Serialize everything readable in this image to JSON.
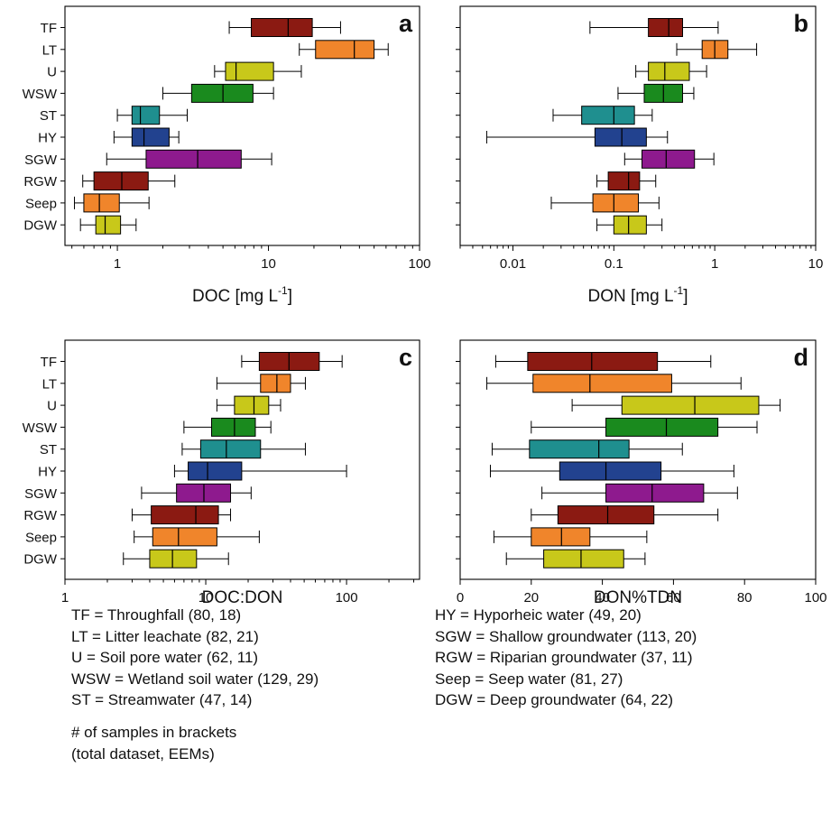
{
  "chart_data": [
    {
      "type": "box",
      "panel_letter": "a",
      "xlabel": "DOC [mg L",
      "xlabel_sup": "-1",
      "xlabel_tail": "]",
      "xscale": "log",
      "xlim": [
        0.45,
        100
      ],
      "xticks": [
        {
          "value": 1,
          "label": "1"
        },
        {
          "value": 10,
          "label": "10"
        },
        {
          "value": 100,
          "label": "100"
        }
      ],
      "categories": [
        "TF",
        "LT",
        "U",
        "WSW",
        "ST",
        "HY",
        "SGW",
        "RGW",
        "Seep",
        "DGW"
      ],
      "colors": [
        "#8b1a12",
        "#f0852b",
        "#c8c81a",
        "#1a8a1e",
        "#1f8f8f",
        "#22428f",
        "#8e1a8e",
        "#8b1a12",
        "#f0852b",
        "#c8c81a"
      ],
      "boxes": [
        {
          "min": 5.5,
          "q1": 7.7,
          "median": 13.5,
          "q3": 19.5,
          "max": 30
        },
        {
          "min": 16,
          "q1": 20.5,
          "median": 37,
          "q3": 50,
          "max": 62
        },
        {
          "min": 4.4,
          "q1": 5.2,
          "median": 6.1,
          "q3": 10.8,
          "max": 16.5
        },
        {
          "min": 2.0,
          "q1": 3.1,
          "median": 5.0,
          "q3": 7.9,
          "max": 10.8
        },
        {
          "min": 1.0,
          "q1": 1.25,
          "median": 1.42,
          "q3": 1.9,
          "max": 2.9
        },
        {
          "min": 0.95,
          "q1": 1.25,
          "median": 1.5,
          "q3": 2.2,
          "max": 2.55
        },
        {
          "min": 0.85,
          "q1": 1.55,
          "median": 3.4,
          "q3": 6.6,
          "max": 10.5
        },
        {
          "min": 0.59,
          "q1": 0.7,
          "median": 1.07,
          "q3": 1.6,
          "max": 2.4
        },
        {
          "min": 0.52,
          "q1": 0.6,
          "median": 0.76,
          "q3": 1.03,
          "max": 1.62
        },
        {
          "min": 0.57,
          "q1": 0.72,
          "median": 0.83,
          "q3": 1.05,
          "max": 1.33
        }
      ]
    },
    {
      "type": "box",
      "panel_letter": "b",
      "xlabel": "DON [mg L",
      "xlabel_sup": "-1",
      "xlabel_tail": "]",
      "xscale": "log",
      "xlim": [
        0.003,
        10
      ],
      "xticks": [
        {
          "value": 0.01,
          "label": "0.01"
        },
        {
          "value": 0.1,
          "label": "0.1"
        },
        {
          "value": 1,
          "label": "1"
        },
        {
          "value": 10,
          "label": "10"
        }
      ],
      "categories": [
        "TF",
        "LT",
        "U",
        "WSW",
        "ST",
        "HY",
        "SGW",
        "RGW",
        "Seep",
        "DGW"
      ],
      "colors": [
        "#8b1a12",
        "#f0852b",
        "#c8c81a",
        "#1a8a1e",
        "#1f8f8f",
        "#22428f",
        "#8e1a8e",
        "#8b1a12",
        "#f0852b",
        "#c8c81a"
      ],
      "boxes": [
        {
          "min": 0.058,
          "q1": 0.22,
          "median": 0.35,
          "q3": 0.48,
          "max": 1.08
        },
        {
          "min": 0.42,
          "q1": 0.75,
          "median": 1.0,
          "q3": 1.35,
          "max": 2.6
        },
        {
          "min": 0.165,
          "q1": 0.22,
          "median": 0.32,
          "q3": 0.56,
          "max": 0.83
        },
        {
          "min": 0.11,
          "q1": 0.2,
          "median": 0.31,
          "q3": 0.48,
          "max": 0.62
        },
        {
          "min": 0.025,
          "q1": 0.048,
          "median": 0.1,
          "q3": 0.16,
          "max": 0.24
        },
        {
          "min": 0.0055,
          "q1": 0.065,
          "median": 0.12,
          "q3": 0.21,
          "max": 0.34
        },
        {
          "min": 0.128,
          "q1": 0.19,
          "median": 0.33,
          "q3": 0.63,
          "max": 0.98
        },
        {
          "min": 0.068,
          "q1": 0.088,
          "median": 0.14,
          "q3": 0.18,
          "max": 0.26
        },
        {
          "min": 0.024,
          "q1": 0.062,
          "median": 0.1,
          "q3": 0.175,
          "max": 0.28
        },
        {
          "min": 0.068,
          "q1": 0.1,
          "median": 0.14,
          "q3": 0.21,
          "max": 0.3
        }
      ]
    },
    {
      "type": "box",
      "panel_letter": "c",
      "xlabel": "DOC:DON",
      "xscale": "log",
      "xlim": [
        1,
        330
      ],
      "xticks": [
        {
          "value": 1,
          "label": "1"
        },
        {
          "value": 10,
          "label": "10"
        },
        {
          "value": 100,
          "label": "100"
        }
      ],
      "categories": [
        "TF",
        "LT",
        "U",
        "WSW",
        "ST",
        "HY",
        "SGW",
        "RGW",
        "Seep",
        "DGW"
      ],
      "colors": [
        "#8b1a12",
        "#f0852b",
        "#c8c81a",
        "#1a8a1e",
        "#1f8f8f",
        "#22428f",
        "#8e1a8e",
        "#8b1a12",
        "#f0852b",
        "#c8c81a"
      ],
      "boxes": [
        {
          "min": 18,
          "q1": 24,
          "median": 39,
          "q3": 64,
          "max": 93
        },
        {
          "min": 12,
          "q1": 24.5,
          "median": 32,
          "q3": 40,
          "max": 51
        },
        {
          "min": 12,
          "q1": 16,
          "median": 22,
          "q3": 28,
          "max": 34
        },
        {
          "min": 7,
          "q1": 11,
          "median": 16,
          "q3": 22.5,
          "max": 29
        },
        {
          "min": 6.8,
          "q1": 9.2,
          "median": 14,
          "q3": 24.5,
          "max": 51
        },
        {
          "min": 6,
          "q1": 7.5,
          "median": 10.3,
          "q3": 18,
          "max": 100
        },
        {
          "min": 3.5,
          "q1": 6.2,
          "median": 9.7,
          "q3": 15,
          "max": 21
        },
        {
          "min": 3,
          "q1": 4.1,
          "median": 8.5,
          "q3": 12.3,
          "max": 15
        },
        {
          "min": 3.1,
          "q1": 4.2,
          "median": 6.4,
          "q3": 12,
          "max": 24
        },
        {
          "min": 2.6,
          "q1": 4,
          "median": 5.8,
          "q3": 8.6,
          "max": 14.5
        }
      ]
    },
    {
      "type": "box",
      "panel_letter": "d",
      "xlabel": "DON%TDN",
      "xscale": "linear",
      "xlim": [
        0,
        100
      ],
      "xticks": [
        {
          "value": 0,
          "label": "0"
        },
        {
          "value": 20,
          "label": "20"
        },
        {
          "value": 40,
          "label": "40"
        },
        {
          "value": 60,
          "label": "60"
        },
        {
          "value": 80,
          "label": "80"
        },
        {
          "value": 100,
          "label": "100"
        }
      ],
      "categories": [
        "TF",
        "LT",
        "U",
        "WSW",
        "ST",
        "HY",
        "SGW",
        "RGW",
        "Seep",
        "DGW"
      ],
      "colors": [
        "#8b1a12",
        "#f0852b",
        "#c8c81a",
        "#1a8a1e",
        "#1f8f8f",
        "#22428f",
        "#8e1a8e",
        "#8b1a12",
        "#f0852b",
        "#c8c81a"
      ],
      "boxes": [
        {
          "min": 10,
          "q1": 19,
          "median": 37,
          "q3": 55.5,
          "max": 70.5
        },
        {
          "min": 7.5,
          "q1": 20.5,
          "median": 36.5,
          "q3": 59.5,
          "max": 79
        },
        {
          "min": 31.5,
          "q1": 45.5,
          "median": 66,
          "q3": 84,
          "max": 90
        },
        {
          "min": 20,
          "q1": 41,
          "median": 58,
          "q3": 72.5,
          "max": 83.5
        },
        {
          "min": 9,
          "q1": 19.5,
          "median": 39,
          "q3": 47.5,
          "max": 62.5
        },
        {
          "min": 8.5,
          "q1": 28,
          "median": 41,
          "q3": 56.5,
          "max": 77
        },
        {
          "min": 23,
          "q1": 41,
          "median": 54,
          "q3": 68.5,
          "max": 78
        },
        {
          "min": 20,
          "q1": 27.5,
          "median": 41.5,
          "q3": 54.5,
          "max": 72.5
        },
        {
          "min": 9.5,
          "q1": 20,
          "median": 28.5,
          "q3": 36.5,
          "max": 52.5
        },
        {
          "min": 13,
          "q1": 23.5,
          "median": 34,
          "q3": 46,
          "max": 52
        }
      ]
    }
  ],
  "legend": {
    "left": [
      "TF = Throughfall (80, 18)",
      "LT = Litter leachate (82, 21)",
      "U = Soil pore water (62, 11)",
      "WSW = Wetland soil water (129, 29)",
      "ST = Streamwater (47, 14)"
    ],
    "right": [
      "HY = Hyporheic water (49, 20)",
      "SGW = Shallow groundwater (113, 20)",
      "RGW = Riparian groundwater (37, 11)",
      "Seep = Seep water (81, 27)",
      "DGW = Deep groundwater (64, 22)"
    ],
    "footnote": [
      "# of samples in brackets",
      "(total dataset, EEMs)"
    ]
  }
}
